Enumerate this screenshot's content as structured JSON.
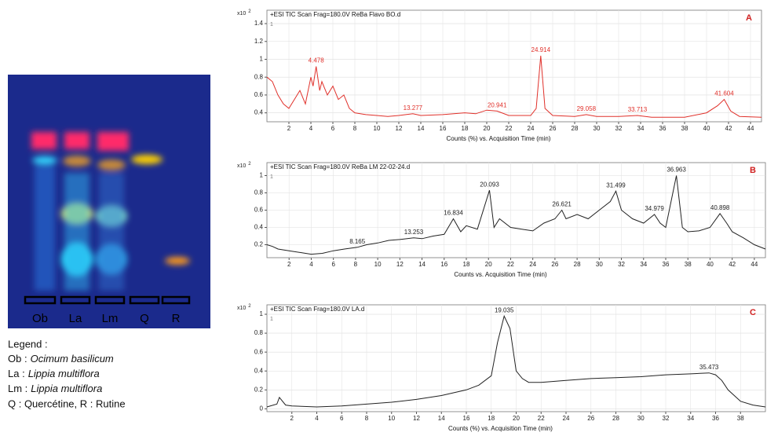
{
  "tlc": {
    "lanes": [
      "Ob",
      "La",
      "Lm",
      "Q",
      "R"
    ],
    "legend_title": "Legend :",
    "legend": [
      {
        "abbr": "Ob :",
        "name": "Ocimum basilicum"
      },
      {
        "abbr": "La :",
        "name": "Lippia multiflora"
      },
      {
        "abbr": "Lm :",
        "name": "Lippia multiflora"
      }
    ],
    "legend_last": "Q : Quercétine, R : Rutine"
  },
  "chart_data": [
    {
      "type": "line",
      "title": "+ESI TIC Scan Frag=180.0V ReBa Flavo BO.d",
      "panel": "A",
      "trace_label": "1",
      "y_multiplier": "x10",
      "y_exponent": 2,
      "xlabel": "Counts (%) vs. Acquisition Time (min)",
      "color": "#e0302a",
      "x": [
        0,
        0.5,
        1,
        1.5,
        2,
        2.5,
        3,
        3.5,
        4,
        4.2,
        4.478,
        4.8,
        5,
        5.5,
        6,
        6.5,
        7,
        7.5,
        8,
        9,
        10,
        11,
        12,
        13.277,
        14,
        16,
        18,
        19,
        20,
        20.941,
        22,
        24,
        24.5,
        24.914,
        25.3,
        26,
        28,
        29.058,
        30,
        32,
        33.713,
        35,
        38,
        40,
        41,
        41.604,
        42.2,
        43,
        45
      ],
      "values": [
        0.8,
        0.75,
        0.6,
        0.5,
        0.45,
        0.55,
        0.65,
        0.5,
        0.8,
        0.7,
        0.92,
        0.65,
        0.75,
        0.6,
        0.7,
        0.55,
        0.6,
        0.45,
        0.4,
        0.38,
        0.37,
        0.36,
        0.37,
        0.39,
        0.37,
        0.38,
        0.4,
        0.39,
        0.43,
        0.42,
        0.37,
        0.37,
        0.45,
        1.04,
        0.45,
        0.37,
        0.36,
        0.38,
        0.36,
        0.36,
        0.37,
        0.35,
        0.35,
        0.4,
        0.48,
        0.55,
        0.42,
        0.36,
        0.35
      ],
      "peak_labels": [
        4.478,
        13.277,
        20.941,
        24.914,
        29.058,
        33.713,
        41.604
      ],
      "xlim": [
        0,
        45
      ],
      "xticks": [
        2,
        4,
        6,
        8,
        10,
        12,
        14,
        16,
        18,
        20,
        22,
        24,
        26,
        28,
        30,
        32,
        34,
        36,
        38,
        40,
        42,
        44
      ],
      "ylim": [
        0.3,
        1.55
      ],
      "yticks": [
        0.4,
        0.6,
        0.8,
        1,
        1.2,
        1.4
      ],
      "grid": true
    },
    {
      "type": "line",
      "title": "+ESI TIC Scan Frag=180.0V ReBa LM 22-02-24.d",
      "panel": "B",
      "trace_label": "1",
      "y_multiplier": "x10",
      "y_exponent": 2,
      "xlabel": "Counts vs. Acquisition Time (min)",
      "color": "#222222",
      "x": [
        0,
        0.5,
        1,
        2,
        3,
        4,
        5,
        6,
        7,
        8.165,
        9,
        10,
        11,
        12,
        13.253,
        14,
        15,
        16,
        16.834,
        17.5,
        18,
        19,
        20.093,
        20.5,
        21,
        22,
        23,
        24,
        25,
        26,
        26.621,
        27,
        28,
        29,
        30,
        31,
        31.499,
        32,
        33,
        34,
        34.979,
        35.5,
        36,
        36.963,
        37.5,
        38,
        39,
        40,
        40.898,
        41.5,
        42,
        43,
        44,
        45
      ],
      "values": [
        0.2,
        0.18,
        0.15,
        0.13,
        0.11,
        0.09,
        0.1,
        0.13,
        0.15,
        0.17,
        0.2,
        0.22,
        0.25,
        0.26,
        0.28,
        0.27,
        0.3,
        0.32,
        0.5,
        0.35,
        0.42,
        0.38,
        0.83,
        0.4,
        0.5,
        0.4,
        0.38,
        0.36,
        0.45,
        0.5,
        0.6,
        0.5,
        0.55,
        0.5,
        0.6,
        0.7,
        0.82,
        0.6,
        0.5,
        0.45,
        0.55,
        0.45,
        0.4,
        1.0,
        0.4,
        0.35,
        0.36,
        0.4,
        0.56,
        0.45,
        0.35,
        0.28,
        0.2,
        0.15
      ],
      "peak_labels": [
        8.165,
        13.253,
        16.834,
        20.093,
        26.621,
        31.499,
        34.979,
        36.963,
        40.898
      ],
      "xlim": [
        0,
        45
      ],
      "xticks": [
        2,
        4,
        6,
        8,
        10,
        12,
        14,
        16,
        18,
        20,
        22,
        24,
        26,
        28,
        30,
        32,
        34,
        36,
        38,
        40,
        42,
        44
      ],
      "ylim": [
        0.05,
        1.15
      ],
      "yticks": [
        0.2,
        0.4,
        0.6,
        0.8,
        1
      ],
      "grid": true
    },
    {
      "type": "line",
      "title": "+ESI TIC Scan Frag=180.0V LA.d",
      "panel": "C",
      "trace_label": "1",
      "y_multiplier": "x10",
      "y_exponent": 2,
      "xlabel": "Counts (%) vs. Acquisition Time (min)",
      "color": "#222222",
      "x": [
        0,
        0.8,
        1,
        1.5,
        2,
        4,
        6,
        8,
        10,
        12,
        14,
        16,
        17,
        18,
        18.5,
        19.035,
        19.5,
        20,
        20.5,
        21,
        22,
        24,
        26,
        28,
        30,
        32,
        34,
        35.473,
        36,
        36.5,
        37,
        38,
        39,
        40
      ],
      "values": [
        0.02,
        0.05,
        0.12,
        0.04,
        0.03,
        0.02,
        0.03,
        0.05,
        0.07,
        0.1,
        0.14,
        0.2,
        0.25,
        0.35,
        0.7,
        0.98,
        0.85,
        0.4,
        0.32,
        0.28,
        0.28,
        0.3,
        0.32,
        0.33,
        0.34,
        0.36,
        0.37,
        0.38,
        0.36,
        0.3,
        0.2,
        0.08,
        0.04,
        0.02
      ],
      "peak_labels": [
        19.035,
        35.473
      ],
      "xlim": [
        0,
        40
      ],
      "xticks": [
        2,
        4,
        6,
        8,
        10,
        12,
        14,
        16,
        18,
        20,
        22,
        24,
        26,
        28,
        30,
        32,
        34,
        36,
        38
      ],
      "ylim": [
        -0.03,
        1.1
      ],
      "yticks": [
        0,
        0.2,
        0.4,
        0.6,
        0.8,
        1
      ],
      "grid": true
    }
  ]
}
